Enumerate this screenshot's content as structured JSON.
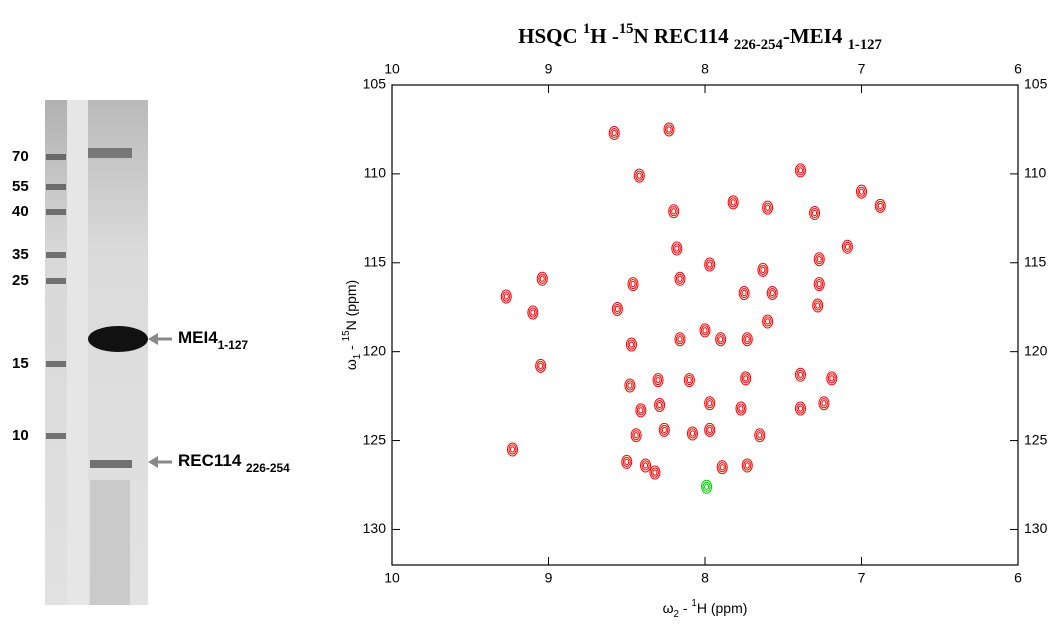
{
  "gel": {
    "ladder": [
      70,
      55,
      40,
      35,
      25,
      15,
      10
    ],
    "bands": [
      [
        {
          "text": "MEI4"
        },
        {
          "text": "1-127",
          "pos": "sub"
        }
      ],
      [
        {
          "text": "REC114 "
        },
        {
          "text": "226-254",
          "pos": "sub"
        }
      ]
    ]
  },
  "chart_data": {
    "type": "scatter",
    "title": [
      {
        "text": "HSQC "
      },
      {
        "text": "1",
        "pos": "sup"
      },
      {
        "text": "H -"
      },
      {
        "text": "15",
        "pos": "sup"
      },
      {
        "text": "N REC114 "
      },
      {
        "text": "226-254",
        "pos": "sub"
      },
      {
        "text": "-MEI4 "
      },
      {
        "text": "1-127",
        "pos": "sub"
      }
    ],
    "x_label": [
      {
        "text": "ω"
      },
      {
        "text": "2",
        "pos": "sub"
      },
      {
        "text": " - "
      },
      {
        "text": "1",
        "pos": "sup"
      },
      {
        "text": "H  (ppm)"
      }
    ],
    "y_label": [
      {
        "text": "ω"
      },
      {
        "text": "1",
        "pos": "sub"
      },
      {
        "text": " - "
      },
      {
        "text": "15",
        "pos": "sup"
      },
      {
        "text": "N  (ppm)"
      }
    ],
    "xlim": [
      10,
      6
    ],
    "ylim": [
      105,
      132
    ],
    "xticks": [
      10,
      9,
      8,
      7,
      6
    ],
    "yticks": [
      105,
      110,
      115,
      120,
      125,
      130
    ],
    "series": [
      {
        "color": "#ff0000",
        "x": [
          8.58,
          8.23,
          8.42,
          8.2,
          7.82,
          7.39,
          7.6,
          7.3,
          6.88,
          7.0,
          8.18,
          7.97,
          8.16,
          7.63,
          7.27,
          7.09,
          7.27,
          7.57,
          7.75,
          9.04,
          9.27,
          9.1,
          8.46,
          8.56,
          7.28,
          8.47,
          8.16,
          8.0,
          7.9,
          7.73,
          7.6,
          9.05,
          8.3,
          8.1,
          8.48,
          7.39,
          7.19,
          7.74,
          8.41,
          8.29,
          7.97,
          7.77,
          7.39,
          7.24,
          8.44,
          8.26,
          8.08,
          7.65,
          7.97,
          9.23,
          8.5,
          8.38,
          8.32,
          7.89,
          7.73
        ],
        "y": [
          107.7,
          107.5,
          110.1,
          112.1,
          111.6,
          109.8,
          111.9,
          112.2,
          111.8,
          111,
          114.2,
          115.1,
          115.9,
          115.4,
          114.8,
          114.1,
          116.2,
          116.7,
          116.7,
          115.9,
          116.9,
          117.8,
          116.2,
          117.6,
          117.4,
          119.6,
          119.3,
          118.8,
          119.3,
          119.3,
          118.3,
          120.8,
          121.6,
          121.6,
          121.9,
          121.3,
          121.5,
          121.5,
          123.3,
          123,
          122.9,
          123.2,
          123.2,
          122.9,
          124.7,
          124.4,
          124.6,
          124.7,
          124.4,
          125.5,
          126.2,
          126.4,
          126.8,
          126.5,
          126.4
        ]
      },
      {
        "color": "#00cc00",
        "x": [
          7.99
        ],
        "y": [
          127.6
        ]
      }
    ]
  }
}
